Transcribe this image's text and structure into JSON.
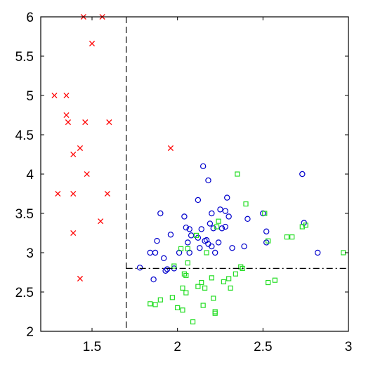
{
  "chart_data": {
    "type": "scatter",
    "title": "",
    "xlabel": "",
    "ylabel": "",
    "xlim": [
      1.2,
      3.0
    ],
    "ylim": [
      2.0,
      6.0
    ],
    "grid": false,
    "legend": "none",
    "x_ticks": [
      {
        "value": 1.5,
        "label": "1.5"
      },
      {
        "value": 2.0,
        "label": "2"
      },
      {
        "value": 2.5,
        "label": "2.5"
      },
      {
        "value": 3.0,
        "label": "3"
      }
    ],
    "y_ticks": [
      {
        "value": 2.0,
        "label": "2"
      },
      {
        "value": 2.5,
        "label": "2.5"
      },
      {
        "value": 3.0,
        "label": "3"
      },
      {
        "value": 3.5,
        "label": "3.5"
      },
      {
        "value": 4.0,
        "label": "4"
      },
      {
        "value": 4.5,
        "label": "4.5"
      },
      {
        "value": 5.0,
        "label": "5"
      },
      {
        "value": 5.5,
        "label": "5.5"
      },
      {
        "value": 6.0,
        "label": "6"
      }
    ],
    "reference_lines": [
      {
        "orientation": "vertical",
        "value": 1.7,
        "style": "dashed",
        "color": "#000000"
      },
      {
        "orientation": "horizontal",
        "value": 2.8,
        "from_x": 1.7,
        "style": "dash-dot",
        "color": "#000000"
      }
    ],
    "series": [
      {
        "marker": "x",
        "color": "#ff0000",
        "points": [
          [
            1.45,
            6.0
          ],
          [
            1.56,
            6.0
          ],
          [
            1.5,
            5.66
          ],
          [
            1.28,
            5.0
          ],
          [
            1.35,
            5.0
          ],
          [
            1.35,
            4.75
          ],
          [
            1.36,
            4.66
          ],
          [
            1.46,
            4.66
          ],
          [
            1.6,
            4.66
          ],
          [
            1.43,
            4.33
          ],
          [
            1.39,
            4.25
          ],
          [
            1.47,
            4.0
          ],
          [
            1.3,
            3.75
          ],
          [
            1.39,
            3.75
          ],
          [
            1.59,
            3.75
          ],
          [
            1.55,
            3.4
          ],
          [
            1.39,
            3.25
          ],
          [
            1.43,
            2.67
          ],
          [
            1.96,
            4.33
          ]
        ]
      },
      {
        "marker": "circle",
        "color": "#0000cc",
        "points": [
          [
            2.15,
            4.1
          ],
          [
            2.73,
            4.0
          ],
          [
            2.18,
            3.92
          ],
          [
            2.12,
            3.67
          ],
          [
            2.29,
            3.7
          ],
          [
            2.25,
            3.55
          ],
          [
            2.28,
            3.53
          ],
          [
            2.2,
            3.5
          ],
          [
            2.3,
            3.46
          ],
          [
            1.9,
            3.5
          ],
          [
            2.04,
            3.46
          ],
          [
            2.5,
            3.5
          ],
          [
            2.41,
            3.43
          ],
          [
            2.74,
            3.38
          ],
          [
            1.88,
            3.15
          ],
          [
            2.05,
            3.32
          ],
          [
            2.07,
            3.3
          ],
          [
            2.14,
            3.3
          ],
          [
            2.19,
            3.37
          ],
          [
            2.21,
            3.31
          ],
          [
            2.26,
            3.31
          ],
          [
            2.28,
            3.33
          ],
          [
            2.52,
            3.27
          ],
          [
            1.96,
            3.23
          ],
          [
            2.08,
            3.22
          ],
          [
            2.12,
            3.19
          ],
          [
            2.17,
            3.16
          ],
          [
            2.18,
            3.11
          ],
          [
            2.2,
            3.08
          ],
          [
            2.24,
            3.13
          ],
          [
            2.16,
            3.15
          ],
          [
            2.13,
            3.06
          ],
          [
            2.32,
            3.06
          ],
          [
            2.39,
            3.08
          ],
          [
            2.52,
            3.13
          ],
          [
            1.92,
            2.93
          ],
          [
            1.84,
            3.0
          ],
          [
            1.87,
            3.0
          ],
          [
            2.01,
            3.0
          ],
          [
            2.07,
            3.0
          ],
          [
            2.22,
            3.0
          ],
          [
            2.82,
            3.0
          ],
          [
            1.78,
            2.81
          ],
          [
            1.94,
            2.79
          ],
          [
            1.98,
            2.8
          ],
          [
            1.93,
            2.77
          ],
          [
            1.86,
            2.66
          ],
          [
            2.06,
            3.13
          ]
        ]
      },
      {
        "marker": "square",
        "color": "#22dd22",
        "points": [
          [
            2.35,
            4.0
          ],
          [
            2.4,
            3.62
          ],
          [
            2.51,
            3.5
          ],
          [
            2.24,
            3.4
          ],
          [
            2.23,
            3.33
          ],
          [
            2.11,
            3.22
          ],
          [
            2.53,
            3.15
          ],
          [
            2.67,
            3.2
          ],
          [
            2.64,
            3.2
          ],
          [
            2.73,
            3.33
          ],
          [
            2.75,
            3.35
          ],
          [
            2.97,
            3.0
          ],
          [
            2.02,
            3.05
          ],
          [
            2.06,
            3.05
          ],
          [
            2.17,
            3.0
          ],
          [
            2.06,
            2.87
          ],
          [
            1.98,
            2.83
          ],
          [
            2.37,
            2.82
          ],
          [
            2.38,
            2.8
          ],
          [
            2.34,
            2.73
          ],
          [
            2.2,
            2.68
          ],
          [
            2.3,
            2.67
          ],
          [
            2.14,
            2.62
          ],
          [
            2.27,
            2.63
          ],
          [
            2.31,
            2.55
          ],
          [
            2.53,
            2.62
          ],
          [
            2.57,
            2.65
          ],
          [
            2.03,
            2.55
          ],
          [
            2.12,
            2.57
          ],
          [
            2.16,
            2.55
          ],
          [
            2.05,
            2.49
          ],
          [
            1.97,
            2.43
          ],
          [
            1.9,
            2.4
          ],
          [
            1.84,
            2.35
          ],
          [
            1.87,
            2.34
          ],
          [
            2.0,
            2.3
          ],
          [
            2.03,
            2.27
          ],
          [
            2.15,
            2.33
          ],
          [
            2.22,
            2.25
          ],
          [
            2.22,
            2.23
          ],
          [
            2.21,
            2.42
          ],
          [
            2.09,
            2.12
          ],
          [
            2.05,
            2.71
          ],
          [
            2.04,
            2.73
          ]
        ]
      }
    ]
  }
}
